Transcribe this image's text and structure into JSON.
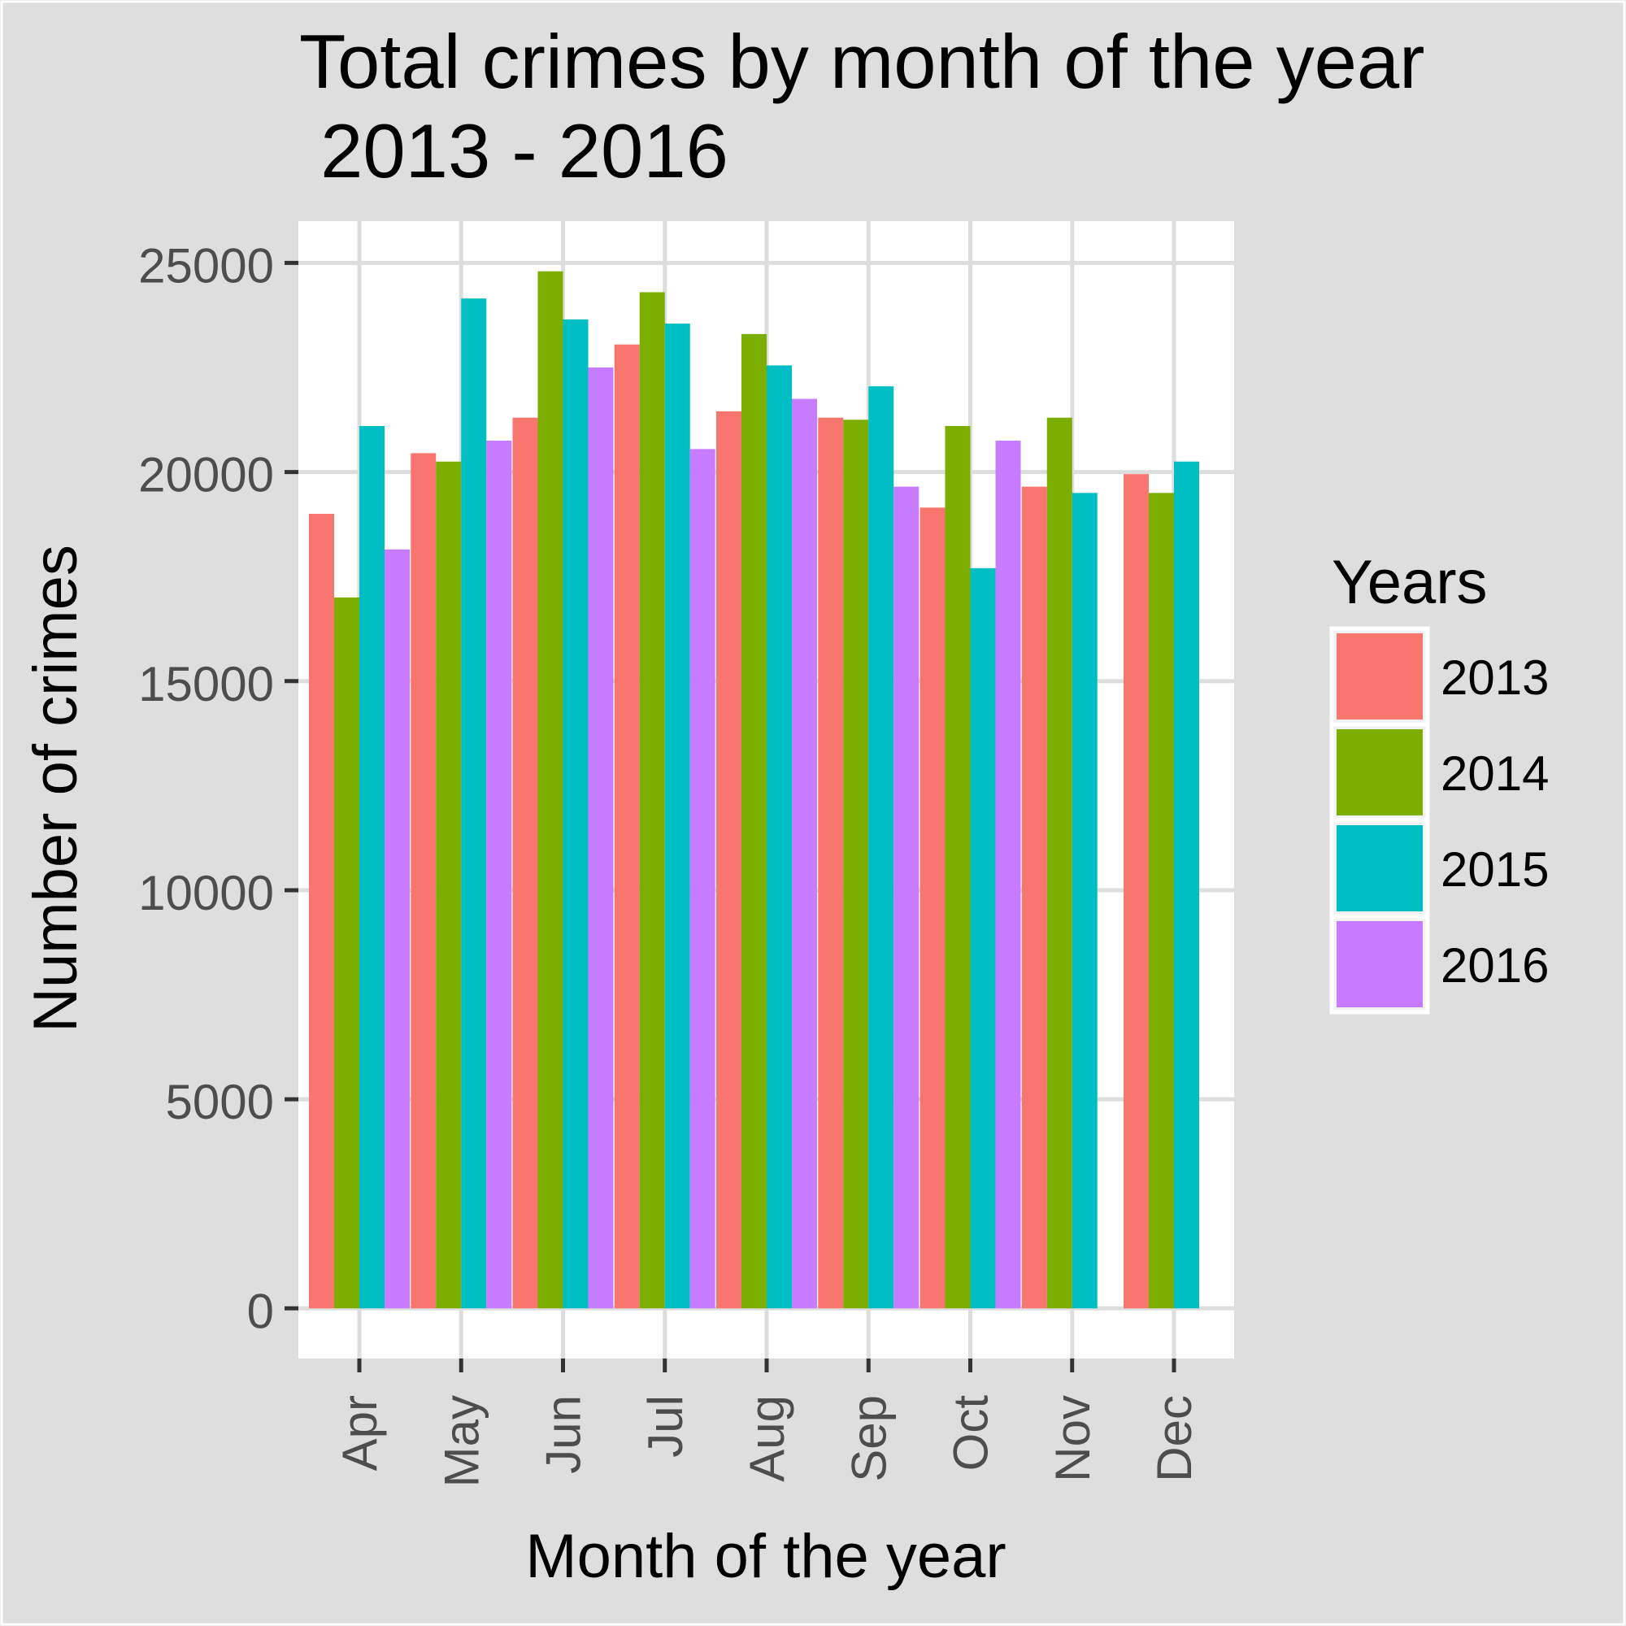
{
  "chart_data": {
    "type": "bar",
    "title_line1": "Total crimes by month of the year",
    "title_line2": " 2013 - 2016",
    "xlabel": "Month of the year",
    "ylabel": "Number of crimes",
    "ylim": [
      -1200,
      26000
    ],
    "yticks": [
      0,
      5000,
      10000,
      15000,
      20000,
      25000
    ],
    "ytick_labels": [
      "0",
      "5000",
      "10000",
      "15000",
      "20000",
      "25000"
    ],
    "categories": [
      "Apr",
      "May",
      "Jun",
      "Jul",
      "Aug",
      "Sep",
      "Oct",
      "Nov",
      "Dec"
    ],
    "grid": true,
    "legend": {
      "title": "Years",
      "placement": "right"
    },
    "series": [
      {
        "name": "2013",
        "color": "#F8766D",
        "values": [
          19000,
          20450,
          21300,
          23050,
          21450,
          21300,
          19150,
          19650,
          19950
        ]
      },
      {
        "name": "2014",
        "color": "#7CAE00",
        "values": [
          17000,
          20250,
          24800,
          24300,
          23300,
          21250,
          21100,
          21300,
          19500
        ]
      },
      {
        "name": "2015",
        "color": "#00BFC4",
        "values": [
          21100,
          24150,
          23650,
          23550,
          22550,
          22050,
          17700,
          19500,
          20250
        ]
      },
      {
        "name": "2016",
        "color": "#C77CFF",
        "values": [
          18150,
          20750,
          22500,
          20550,
          21750,
          19650,
          20750,
          null,
          null
        ]
      }
    ]
  }
}
